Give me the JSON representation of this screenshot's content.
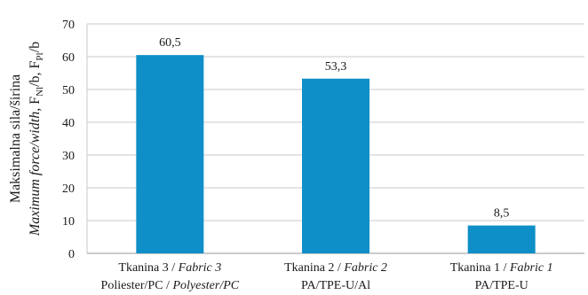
{
  "chart_data": {
    "type": "bar",
    "categories": [
      {
        "l1_plain": "Tkanina 3 / ",
        "l1_italic": "Fabric 3",
        "l2_plain": "Poliester/PC / ",
        "l2_italic": "Polyester/PC"
      },
      {
        "l1_plain": "Tkanina 2 / ",
        "l1_italic": "Fabric 2",
        "l2_plain": "PA/TPE-U/Al",
        "l2_italic": ""
      },
      {
        "l1_plain": "Tkanina 1 / ",
        "l1_italic": "Fabric 1",
        "l2_plain": "PA/TPE-U",
        "l2_italic": ""
      }
    ],
    "values": [
      60.5,
      53.3,
      8.5
    ],
    "data_labels": [
      "60,5",
      "53,3",
      "8,5"
    ],
    "ylim": [
      0,
      70
    ],
    "yticks": [
      0,
      10,
      20,
      30,
      40,
      50,
      60,
      70
    ],
    "ylabel": {
      "line1": "Maksimalna sila/širina",
      "line2_italic": "Maximum force/width,",
      "line2_f1": "F",
      "line2_sub1": "Nl",
      "line2_mid": "/b, F",
      "line2_sub2": "Pl",
      "line2_end": "/b"
    },
    "grid": true,
    "bar_color": "#0e8fc7",
    "grid_color": "#c8c8c8"
  }
}
